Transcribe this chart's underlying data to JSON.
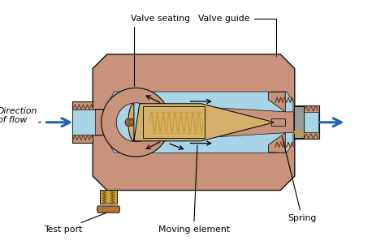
{
  "background_color": "#ffffff",
  "body_color": "#c8937a",
  "flow_color": "#a8d4e8",
  "element_color": "#d4b06a",
  "spring_color": "#c8a030",
  "bolt_color": "#c8a040",
  "arrow_color": "#2266aa",
  "line_color": "#111111",
  "dark_line": "#333333",
  "guide_color": "#aaaaaa",
  "labels": {
    "valve_seating": "Valve seating",
    "valve_guide": "Valve guide",
    "direction_of_flow": "Direction\nof flow",
    "test_port": "Test port",
    "moving_element": "Moving element",
    "spring": "Spring"
  },
  "figsize": [
    4.74,
    3.02
  ],
  "dpi": 100
}
